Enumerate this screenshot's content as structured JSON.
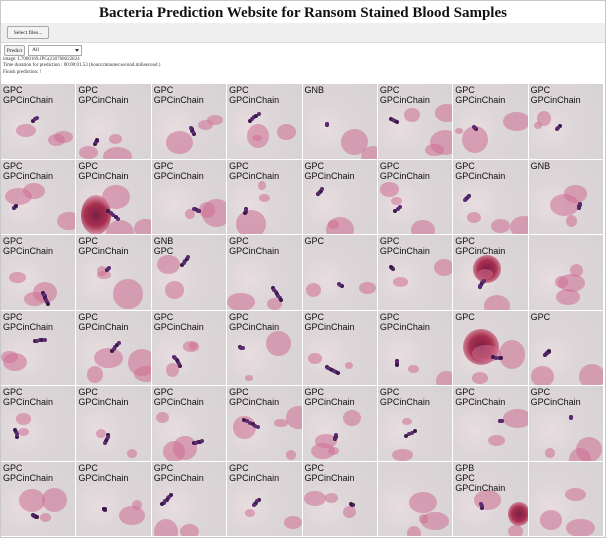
{
  "page": {
    "title": "Bacteria Prediction Website for Ransom Stained Blood Samples"
  },
  "toolbar": {
    "select_files_label": "Select files...",
    "predict_label": "Predict",
    "filter_value": "All"
  },
  "info": {
    "image_line": "image: L7000169.JPG(230708022824",
    "duration_line": "Time duration for prediction : 00:00:01.53 (hours:minutes:second.milisecond )",
    "finish_line": "Finish prediction: !"
  },
  "tiles": [
    [
      "GPC",
      "GPCinChain"
    ],
    [
      "GPC",
      "GPCinChain"
    ],
    [
      "GPC",
      "GPCinChain"
    ],
    [
      "GPC",
      "GPCinChain"
    ],
    [
      "GNB"
    ],
    [
      "GPC",
      "GPCinChain"
    ],
    [
      "GPC",
      "GPCinChain"
    ],
    [
      "GPC",
      "GPCinChain"
    ],
    [
      "GPC",
      "GPCinChain"
    ],
    [
      "GPC",
      "GPCinChain"
    ],
    [
      "GPC",
      "GPCinChain"
    ],
    [
      "GPC",
      "GPCinChain"
    ],
    [
      "GPC",
      "GPCinChain"
    ],
    [
      "GPC",
      "GPCinChain"
    ],
    [
      "GPC",
      "GPCinChain"
    ],
    [
      "GNB"
    ],
    [
      "GPC",
      "GPCinChain"
    ],
    [
      "GPC",
      "GPCinChain"
    ],
    [
      "GNB",
      "GPC"
    ],
    [
      "GPC",
      "GPCinChain"
    ],
    [
      "GPC"
    ],
    [
      "GPC",
      "GPCinChain"
    ],
    [
      "GPC",
      "GPCinChain"
    ],
    [],
    [
      "GPC",
      "GPCinChain"
    ],
    [
      "GPC",
      "GPCinChain"
    ],
    [
      "GPC",
      "GPCinChain"
    ],
    [
      "GPC",
      "GPCinChain"
    ],
    [
      "GPC",
      "GPCinChain"
    ],
    [
      "GPC",
      "GPCinChain"
    ],
    [
      "GPC"
    ],
    [
      "GPC"
    ],
    [
      "GPC",
      "GPCinChain"
    ],
    [
      "GPC",
      "GPCinChain"
    ],
    [
      "GPC",
      "GPCinChain"
    ],
    [
      "GPC",
      "GPCinChain"
    ],
    [
      "GPC",
      "GPCinChain"
    ],
    [
      "GPC",
      "GPCinChain"
    ],
    [
      "GPC",
      "GPCinChain"
    ],
    [
      "GPC",
      "GPCinChain"
    ],
    [
      "GPC",
      "GPCinChain"
    ],
    [
      "GPC",
      "GPCinChain"
    ],
    [
      "GPC",
      "GPCinChain"
    ],
    [
      "GPC",
      "GPCinChain"
    ],
    [
      "GPC",
      "GPCinChain"
    ],
    [],
    [
      "GPB",
      "GPC",
      "GPCinChain"
    ],
    []
  ]
}
